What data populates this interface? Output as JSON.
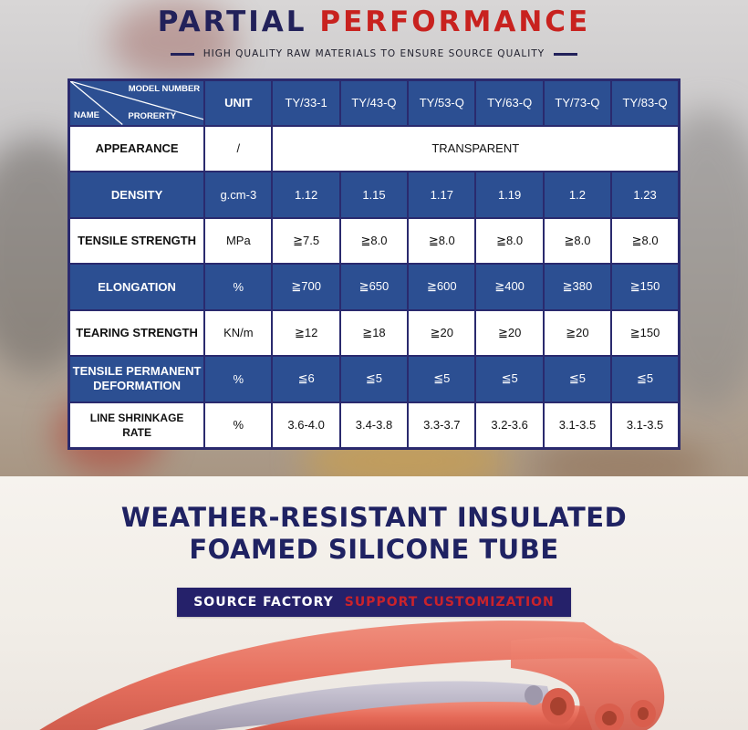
{
  "header": {
    "title_part1": "PARTIAL",
    "title_part2": "PERFORMANCE",
    "subtitle": "HIGH QUALITY RAW MATERIALS TO ENSURE SOURCE QUALITY"
  },
  "table": {
    "corner": {
      "model_number": "MODEL NUMBER",
      "property": "PRORERTY",
      "name": "NAME"
    },
    "unit_header": "UNIT",
    "models": [
      "TY/33-1",
      "TY/43-Q",
      "TY/53-Q",
      "TY/63-Q",
      "TY/73-Q",
      "TY/83-Q"
    ],
    "appearance": {
      "name": "APPEARANCE",
      "unit": "/",
      "value": "TRANSPARENT"
    },
    "rows": [
      {
        "name": "DENSITY",
        "unit": "g.cm-3",
        "values": [
          "1.12",
          "1.15",
          "1.17",
          "1.19",
          "1.2",
          "1.23"
        ]
      },
      {
        "name": "TENSILE STRENGTH",
        "unit": "MPa",
        "values": [
          "≧7.5",
          "≧8.0",
          "≧8.0",
          "≧8.0",
          "≧8.0",
          "≧8.0"
        ]
      },
      {
        "name": "ELONGATION",
        "unit": "%",
        "values": [
          "≧700",
          "≧650",
          "≧600",
          "≧400",
          "≧380",
          "≧150"
        ]
      },
      {
        "name": "TEARING STRENGTH",
        "unit": "KN/m",
        "values": [
          "≧12",
          "≧18",
          "≧20",
          "≧20",
          "≧20",
          "≧150"
        ]
      },
      {
        "name_line1": "TENSILE PERMANENT",
        "name_line2": "DEFORMATION",
        "unit": "%",
        "values": [
          "≦6",
          "≦5",
          "≦5",
          "≦5",
          "≦5",
          "≦5"
        ]
      },
      {
        "name_line1": "LINE SHRINKAGE",
        "name_line2": "RATE",
        "unit": "%",
        "values": [
          "3.6-4.0",
          "3.4-3.8",
          "3.3-3.7",
          "3.2-3.6",
          "3.1-3.5",
          "3.1-3.5"
        ]
      }
    ]
  },
  "product": {
    "headline_line1": "WEATHER-RESISTANT INSULATED",
    "headline_line2": "FOAMED SILICONE TUBE",
    "badge_part1": "SOURCE FACTORY",
    "badge_part2": "SUPPORT CUSTOMIZATION"
  },
  "colors": {
    "navy": "#22215a",
    "red": "#c8221f",
    "table_blue": "#2c4f92",
    "tube_red": "#e8705f",
    "tube_gray": "#b8b4c4"
  }
}
